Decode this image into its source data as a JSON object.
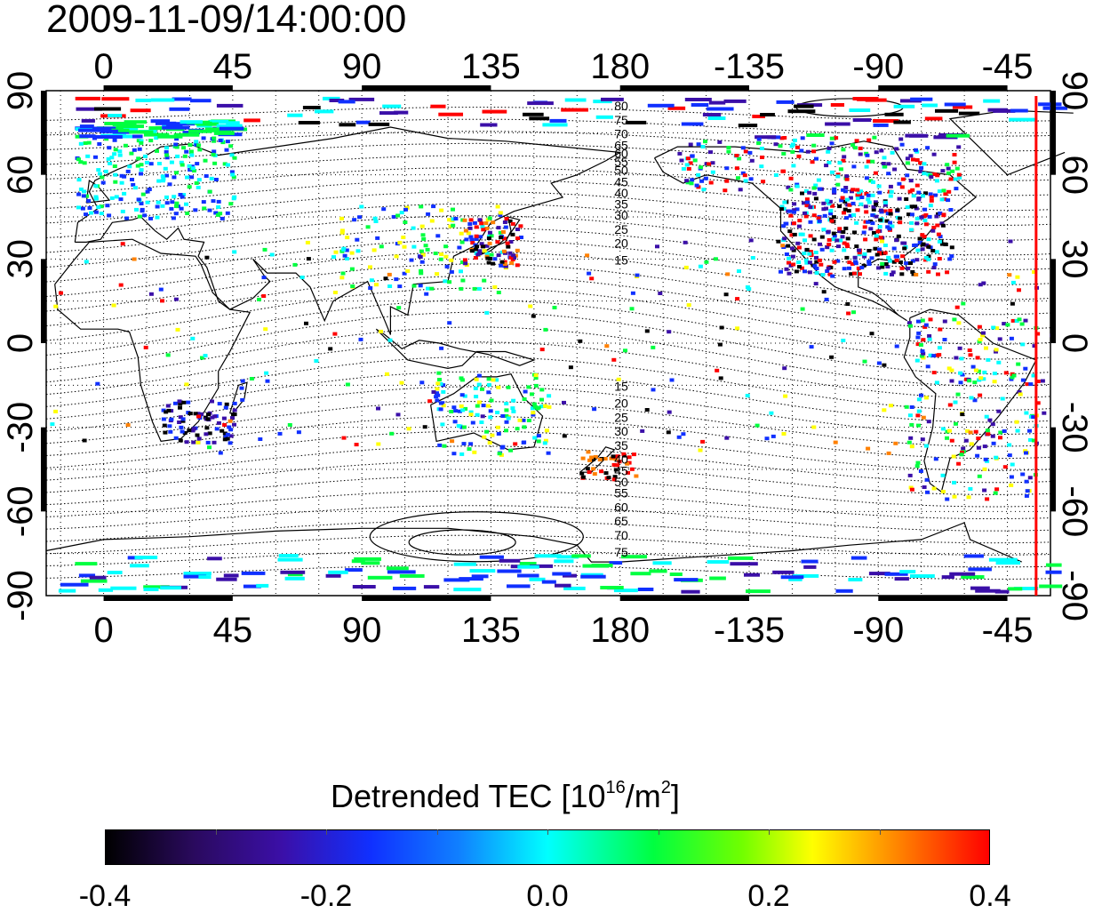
{
  "title": "2009-11-09/14:00:00",
  "map": {
    "lon_ticks": [
      "0",
      "45",
      "90",
      "135",
      "180",
      "-135",
      "-90",
      "-45"
    ],
    "lat_ticks": [
      "90",
      "60",
      "30",
      "0",
      "-30",
      "-60",
      "-90"
    ],
    "lon_range_deg": [
      -20,
      330
    ],
    "lat_range_deg": [
      -90,
      90
    ],
    "grid": "dotted, every 15 degrees",
    "contour_labels": [
      "80",
      "75",
      "70",
      "65",
      "60",
      "55",
      "50",
      "45",
      "40",
      "35",
      "30",
      "25",
      "20",
      "15",
      "15",
      "20",
      "25",
      "30",
      "35",
      "40",
      "45",
      "50",
      "55",
      "60",
      "65",
      "70",
      "75"
    ],
    "marker_line": {
      "lon_deg": -35,
      "color": "#ff0000"
    },
    "palette": {
      "black": "#000000",
      "purple": "#3b0fa8",
      "blue": "#1030ff",
      "cyan": "#00ffff",
      "green": "#00ff40",
      "yellow": "#ffff00",
      "orange": "#ff8000",
      "red": "#ff0000"
    }
  },
  "colorbar": {
    "title_prefix": "Detrended TEC  [10",
    "title_exp": "16",
    "title_mid": "/m",
    "title_exp2": "2",
    "title_suffix": "]",
    "min": -0.4,
    "max": 0.4,
    "tick_labels": [
      "-0.4",
      "-0.2",
      "0.0",
      "0.2",
      "0.4"
    ]
  }
}
